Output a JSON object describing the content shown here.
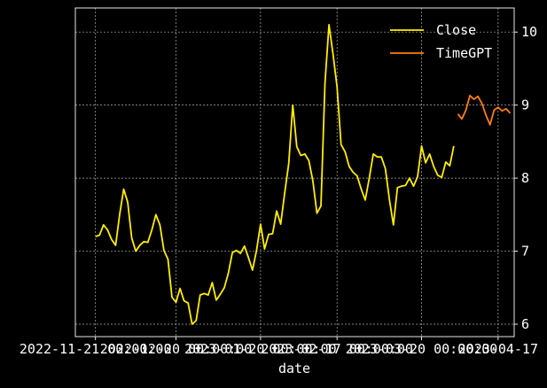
{
  "chart_data": {
    "type": "line",
    "title": "",
    "xlabel": "date",
    "ylabel": "",
    "x_tick_labels": [
      "2022-11-21 00:00:00",
      "2022-12-20 00:00:00",
      "2023-01-20 00:00:00",
      "2023-02-17 00:00:00",
      "2023-03-20 00:00:00",
      "2023-04-17"
    ],
    "x_tick_index": [
      0,
      20,
      41,
      60,
      81,
      100
    ],
    "y_ticks": [
      6,
      7,
      8,
      9,
      10
    ],
    "ylim": [
      5.83,
      10.33
    ],
    "xlim_index": [
      -5,
      104
    ],
    "grid": true,
    "legend": "top-right",
    "series": [
      {
        "name": "Close",
        "color": "#ffee00",
        "start_index": 0,
        "values": [
          7.2,
          7.22,
          7.36,
          7.29,
          7.16,
          7.08,
          7.5,
          7.85,
          7.67,
          7.18,
          7.0,
          7.08,
          7.13,
          7.12,
          7.29,
          7.5,
          7.36,
          7.01,
          6.89,
          6.37,
          6.3,
          6.49,
          6.32,
          6.29,
          6.0,
          6.05,
          6.4,
          6.42,
          6.4,
          6.57,
          6.33,
          6.41,
          6.5,
          6.7,
          6.98,
          7.01,
          6.97,
          7.07,
          6.91,
          6.74,
          7.01,
          7.37,
          7.03,
          7.23,
          7.24,
          7.55,
          7.37,
          7.8,
          8.2,
          9.0,
          8.43,
          8.31,
          8.33,
          8.24,
          7.96,
          7.52,
          7.62,
          9.3,
          10.1,
          9.7,
          9.25,
          8.46,
          8.36,
          8.16,
          8.08,
          8.03,
          7.85,
          7.7,
          8.0,
          8.33,
          8.29,
          8.29,
          8.13,
          7.71,
          7.36,
          7.87,
          7.89,
          7.9,
          8.0,
          7.89,
          8.02,
          8.44,
          8.21,
          8.33,
          8.16,
          8.04,
          8.01,
          8.22,
          8.17,
          8.44
        ]
      },
      {
        "name": "TimeGPT",
        "color": "#ff7f0e",
        "start_index": 90,
        "values": [
          8.88,
          8.81,
          8.93,
          9.13,
          9.08,
          9.12,
          9.02,
          8.86,
          8.73,
          8.93,
          8.97,
          8.92,
          8.95,
          8.89
        ]
      }
    ]
  }
}
